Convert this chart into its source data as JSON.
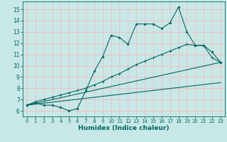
{
  "xlabel": "Humidex (Indice chaleur)",
  "background_color": "#c8e8e8",
  "grid_color": "#f0c0c0",
  "line_color": "#006860",
  "xlim": [
    -0.5,
    23.5
  ],
  "ylim": [
    5.5,
    15.7
  ],
  "xticks": [
    0,
    1,
    2,
    3,
    4,
    5,
    6,
    7,
    8,
    9,
    10,
    11,
    12,
    13,
    14,
    15,
    16,
    17,
    18,
    19,
    20,
    21,
    22,
    23
  ],
  "yticks": [
    6,
    7,
    8,
    9,
    10,
    11,
    12,
    13,
    14,
    15
  ],
  "line1_x": [
    0,
    1,
    2,
    3,
    4,
    5,
    6,
    7,
    8,
    9,
    10,
    11,
    12,
    13,
    14,
    15,
    16,
    17,
    18,
    19,
    20,
    21,
    22,
    23
  ],
  "line1_y": [
    6.5,
    6.7,
    6.5,
    6.5,
    6.3,
    6.0,
    6.2,
    7.8,
    9.5,
    10.8,
    12.7,
    12.5,
    11.9,
    13.7,
    13.7,
    13.7,
    13.3,
    13.8,
    15.2,
    13.0,
    11.8,
    11.8,
    11.2,
    10.3
  ],
  "line2_x": [
    0,
    1,
    2,
    3,
    4,
    5,
    6,
    7,
    8,
    9,
    10,
    11,
    12,
    13,
    14,
    15,
    16,
    17,
    18,
    19,
    20,
    21,
    22,
    23
  ],
  "line2_y": [
    6.5,
    6.8,
    7.0,
    7.2,
    7.4,
    7.6,
    7.8,
    8.0,
    8.3,
    8.6,
    9.0,
    9.3,
    9.7,
    10.1,
    10.4,
    10.7,
    11.0,
    11.3,
    11.6,
    11.9,
    11.8,
    11.8,
    10.7,
    10.3
  ],
  "line3_x": [
    0,
    23
  ],
  "line3_y": [
    6.5,
    10.3
  ],
  "line4_x": [
    0,
    23
  ],
  "line4_y": [
    6.5,
    8.5
  ]
}
